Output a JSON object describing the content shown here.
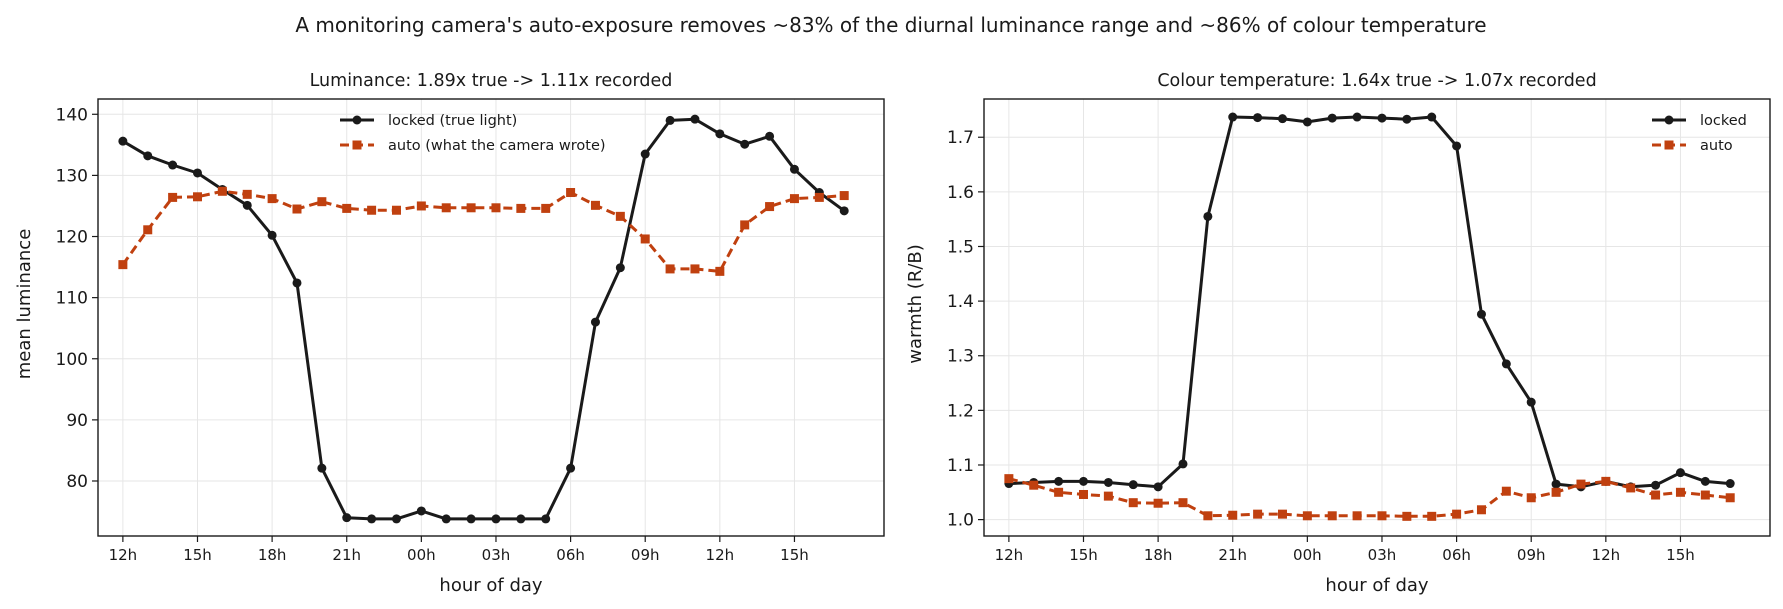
{
  "suptitle": "A monitoring camera's auto-exposure removes ~83% of the diurnal luminance range and ~86% of colour temperature",
  "colors": {
    "locked": "#1a1a1a",
    "auto": "#c0400f"
  },
  "chart_data": [
    {
      "type": "line",
      "title": "Luminance: 1.89x true -> 1.11x recorded",
      "xlabel": "hour of day",
      "ylabel": "mean luminance",
      "x": [
        12,
        13,
        14,
        15,
        16,
        17,
        18,
        19,
        20,
        21,
        22,
        23,
        24,
        25,
        26,
        27,
        28,
        29,
        30,
        31,
        32,
        33,
        34,
        35,
        36,
        37,
        38,
        39,
        40,
        41
      ],
      "xticks": [
        12,
        15,
        18,
        21,
        24,
        27,
        30,
        33,
        36,
        39
      ],
      "xticklabels": [
        "12h",
        "15h",
        "18h",
        "21h",
        "00h",
        "03h",
        "06h",
        "09h",
        "12h",
        "15h"
      ],
      "xlim": [
        11,
        42.6
      ],
      "ylim": [
        71,
        142.5
      ],
      "yticks": [
        80,
        90,
        100,
        110,
        120,
        130,
        140
      ],
      "grid": true,
      "legend_position": "top-center",
      "series": [
        {
          "name": "locked (true light)",
          "style": "solid",
          "marker": "circle",
          "values": [
            135.6,
            133.2,
            131.7,
            130.4,
            127.7,
            125.1,
            120.2,
            112.4,
            82.1,
            74.0,
            73.8,
            73.8,
            75.1,
            73.8,
            73.8,
            73.8,
            73.8,
            73.8,
            82.1,
            106.0,
            114.9,
            133.5,
            139.0,
            139.2,
            136.8,
            135.1,
            136.4,
            131.0,
            127.2,
            124.2
          ]
        },
        {
          "name": "auto (what the camera wrote)",
          "style": "dashed",
          "marker": "square",
          "values": [
            115.4,
            121.1,
            126.4,
            126.5,
            127.4,
            126.9,
            126.2,
            124.5,
            125.7,
            124.6,
            124.3,
            124.3,
            125.0,
            124.7,
            124.7,
            124.7,
            124.6,
            124.6,
            127.2,
            125.1,
            123.3,
            119.6,
            114.7,
            114.7,
            114.3,
            121.9,
            124.9,
            126.2,
            126.4,
            126.7
          ]
        }
      ]
    },
    {
      "type": "line",
      "title": "Colour temperature: 1.64x true -> 1.07x recorded",
      "xlabel": "hour of day",
      "ylabel": "warmth (R/B)",
      "x": [
        12,
        13,
        14,
        15,
        16,
        17,
        18,
        19,
        20,
        21,
        22,
        23,
        24,
        25,
        26,
        27,
        28,
        29,
        30,
        31,
        32,
        33,
        34,
        35,
        36,
        37,
        38,
        39,
        40,
        41
      ],
      "xticks": [
        12,
        15,
        18,
        21,
        24,
        27,
        30,
        33,
        36,
        39
      ],
      "xticklabels": [
        "12h",
        "15h",
        "18h",
        "21h",
        "00h",
        "03h",
        "06h",
        "09h",
        "12h",
        "15h"
      ],
      "xlim": [
        11,
        42.6
      ],
      "ylim": [
        0.97,
        1.77
      ],
      "yticks": [
        1.0,
        1.1,
        1.2,
        1.3,
        1.4,
        1.5,
        1.6,
        1.7
      ],
      "ytick_decimals": 1,
      "grid": true,
      "legend_position": "top-right",
      "series": [
        {
          "name": "locked",
          "style": "solid",
          "marker": "circle",
          "values": [
            1.066,
            1.068,
            1.07,
            1.07,
            1.068,
            1.064,
            1.06,
            1.102,
            1.555,
            1.737,
            1.736,
            1.734,
            1.728,
            1.735,
            1.737,
            1.735,
            1.733,
            1.737,
            1.684,
            1.376,
            1.285,
            1.215,
            1.065,
            1.06,
            1.07,
            1.06,
            1.063,
            1.086,
            1.07,
            1.066
          ]
        },
        {
          "name": "auto",
          "style": "dashed",
          "marker": "square",
          "values": [
            1.075,
            1.063,
            1.05,
            1.046,
            1.043,
            1.031,
            1.03,
            1.031,
            1.007,
            1.008,
            1.01,
            1.01,
            1.007,
            1.007,
            1.007,
            1.007,
            1.006,
            1.006,
            1.01,
            1.018,
            1.052,
            1.04,
            1.05,
            1.065,
            1.07,
            1.058,
            1.045,
            1.05,
            1.045,
            1.04
          ]
        }
      ]
    }
  ]
}
